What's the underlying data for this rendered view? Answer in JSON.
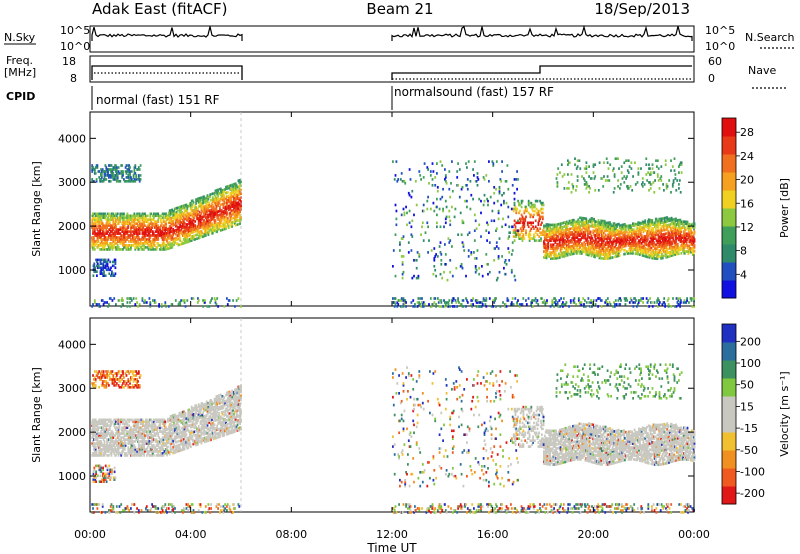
{
  "header": {
    "station": "Adak East (fitACF)",
    "beam": "Beam 21",
    "date": "18/Sep/2013"
  },
  "summary_panels": {
    "nsky_label": "N.Sky",
    "nsky_ticks": [
      "10^5",
      "10^0"
    ],
    "nsearch_label": "N.Search",
    "nsearch_ticks": [
      "10^5",
      "10^0"
    ],
    "freq_label_line1": "Freq.",
    "freq_label_line2": "[MHz]",
    "freq_ticks": [
      "18",
      "8"
    ],
    "nave_label": "Nave",
    "nave_ticks": [
      "60",
      "0"
    ],
    "cpid_label": "CPID",
    "cpid_segments": [
      {
        "label": "normal (fast) 151 RF",
        "start": "00:00",
        "end": "06:00"
      },
      {
        "label": "normalsound (fast) 157 RF",
        "start": "12:00",
        "end": "24:00"
      }
    ]
  },
  "x_axis": {
    "title": "Time UT",
    "ticks": [
      "00:00",
      "04:00",
      "08:00",
      "12:00",
      "16:00",
      "20:00",
      "00:00"
    ]
  },
  "chart_data": [
    {
      "type": "heatmap",
      "name": "power",
      "ylabel": "Slant Range [km]",
      "yticks": [
        1000,
        2000,
        3000,
        4000
      ],
      "ylim": [
        180,
        4600
      ],
      "xlim_hours": [
        0,
        24
      ],
      "colorbar": {
        "title": "Power [dB]",
        "ticks": [
          "4",
          "8",
          "12",
          "16",
          "20",
          "24",
          "28"
        ],
        "colors": [
          "#1010e0",
          "#2050c0",
          "#2f8a6a",
          "#3f9e5a",
          "#8cc840",
          "#f0d020",
          "#f5a020",
          "#f07020",
          "#e83a18",
          "#e01010"
        ]
      },
      "data_coverage": [
        {
          "start": "00:00",
          "end": "06:00"
        },
        {
          "start": "12:00",
          "end": "24:00"
        }
      ]
    },
    {
      "type": "heatmap",
      "name": "velocity",
      "ylabel": "Slant Range [km]",
      "yticks": [
        1000,
        2000,
        3000,
        4000
      ],
      "ylim": [
        180,
        4600
      ],
      "xlim_hours": [
        0,
        24
      ],
      "colorbar": {
        "title": "Velocity [m s⁻¹]",
        "ticks": [
          "200",
          "100",
          "50",
          "15",
          "-15",
          "-50",
          "-100",
          "-200"
        ],
        "colors": [
          "#2030c0",
          "#2b6e9e",
          "#3d9060",
          "#7fc840",
          "#c8c8c0",
          "#c8c8c0",
          "#f0c030",
          "#f09020",
          "#f05a20",
          "#e01818"
        ]
      },
      "data_coverage": [
        {
          "start": "00:00",
          "end": "06:00"
        },
        {
          "start": "12:00",
          "end": "24:00"
        }
      ]
    }
  ]
}
